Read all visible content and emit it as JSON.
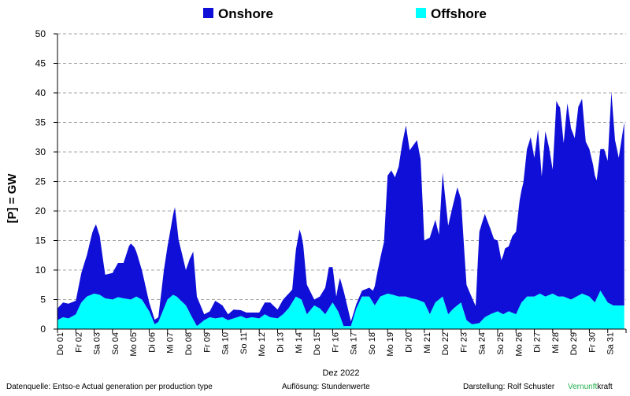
{
  "chart_data": {
    "type": "area",
    "stacked": true,
    "ylabel": "[P] = GW",
    "xlabel": "Dez 2022",
    "ylim": [
      0,
      50
    ],
    "yticks": [
      0,
      5,
      10,
      15,
      20,
      25,
      30,
      35,
      40,
      45,
      50
    ],
    "grid": true,
    "legend_position": "top",
    "x_tick_labels": [
      "Do 01",
      "Fr 02",
      "Sa 03",
      "So 04",
      "Mo 05",
      "Di 06",
      "Mi 07",
      "Do 08",
      "Fr 09",
      "Sa 10",
      "So 11",
      "Mo 12",
      "Di 13",
      "Mi 14",
      "Do 15",
      "Fr 16",
      "Sa 17",
      "So 18",
      "Mo 19",
      "Di 20",
      "Mi 21",
      "Do 22",
      "Fr 23",
      "Sa 24",
      "So 25",
      "Mo 26",
      "Di 27",
      "Mi 28",
      "Do 29",
      "Fr 30",
      "Sa 31"
    ],
    "x_unit": "day of December 2022 (1 = 1 Dec 00:00)",
    "series": [
      {
        "name": "Offshore",
        "color": "#00ffff",
        "x": [
          1.0,
          1.3,
          1.6,
          2.0,
          2.3,
          2.6,
          3.0,
          3.3,
          3.6,
          4.0,
          4.3,
          4.6,
          5.0,
          5.3,
          5.6,
          6.0,
          6.3,
          6.5,
          7.0,
          7.3,
          7.5,
          8.0,
          8.3,
          8.6,
          9.0,
          9.3,
          9.6,
          10.0,
          10.3,
          10.6,
          11.0,
          11.3,
          11.6,
          12.0,
          12.3,
          12.6,
          13.0,
          13.3,
          13.6,
          14.0,
          14.3,
          14.6,
          15.0,
          15.3,
          15.6,
          16.0,
          16.3,
          16.6,
          17.0,
          17.3,
          17.6,
          18.0,
          18.3,
          18.6,
          19.0,
          19.3,
          19.6,
          20.0,
          20.3,
          20.6,
          21.0,
          21.3,
          21.6,
          22.0,
          22.3,
          22.6,
          23.0,
          23.3,
          23.6,
          24.0,
          24.3,
          24.6,
          25.0,
          25.3,
          25.6,
          26.0,
          26.3,
          26.6,
          27.0,
          27.3,
          27.6,
          28.0,
          28.3,
          28.6,
          29.0,
          29.3,
          29.6,
          30.0,
          30.3,
          30.6,
          31.0,
          31.3,
          31.9
        ],
        "values": [
          1.5,
          2.0,
          1.8,
          2.5,
          4.5,
          5.5,
          6.0,
          5.8,
          5.2,
          5.0,
          5.4,
          5.2,
          5.0,
          5.5,
          5.0,
          3.0,
          0.8,
          1.2,
          5.0,
          5.8,
          5.5,
          4.0,
          2.2,
          0.5,
          1.5,
          2.0,
          1.8,
          2.0,
          1.5,
          1.8,
          2.2,
          1.8,
          2.0,
          1.8,
          2.5,
          2.0,
          1.8,
          2.5,
          3.5,
          5.5,
          5.0,
          2.5,
          4.0,
          3.5,
          2.5,
          4.5,
          3.0,
          0.5,
          0.5,
          3.5,
          5.5,
          5.5,
          4.0,
          5.5,
          6.0,
          5.8,
          5.5,
          5.5,
          5.2,
          5.0,
          4.5,
          2.5,
          4.5,
          5.5,
          2.5,
          3.5,
          4.5,
          1.5,
          0.8,
          1.0,
          2.0,
          2.5,
          3.0,
          2.5,
          3.0,
          2.5,
          4.5,
          5.5,
          5.5,
          6.0,
          5.5,
          6.0,
          5.5,
          5.5,
          5.0,
          5.5,
          6.0,
          5.5,
          4.5,
          6.5,
          4.5,
          4.0,
          4.0
        ]
      },
      {
        "name": "Onshore",
        "color": "#0f0fd7",
        "x": [
          1.0,
          1.3,
          1.6,
          2.0,
          2.3,
          2.6,
          2.9,
          3.1,
          3.3,
          3.6,
          4.0,
          4.3,
          4.6,
          4.9,
          5.0,
          5.2,
          5.6,
          6.0,
          6.3,
          6.5,
          6.8,
          7.0,
          7.2,
          7.4,
          7.6,
          8.0,
          8.2,
          8.4,
          8.6,
          9.0,
          9.3,
          9.6,
          10.0,
          10.3,
          10.6,
          11.0,
          11.3,
          11.6,
          12.0,
          12.3,
          12.6,
          13.0,
          13.3,
          13.6,
          13.8,
          14.0,
          14.2,
          14.4,
          14.6,
          15.0,
          15.3,
          15.6,
          15.8,
          16.0,
          16.2,
          16.4,
          16.6,
          17.0,
          17.3,
          17.6,
          18.0,
          18.2,
          18.4,
          18.6,
          18.8,
          19.0,
          19.2,
          19.4,
          19.6,
          19.8,
          20.0,
          20.2,
          20.4,
          20.6,
          20.8,
          21.0,
          21.3,
          21.6,
          21.8,
          22.0,
          22.3,
          22.6,
          22.8,
          23.0,
          23.3,
          23.6,
          23.8,
          24.0,
          24.3,
          24.6,
          24.8,
          25.0,
          25.2,
          25.4,
          25.6,
          25.8,
          26.0,
          26.2,
          26.4,
          26.6,
          26.8,
          27.0,
          27.2,
          27.4,
          27.6,
          27.8,
          28.0,
          28.2,
          28.4,
          28.6,
          28.8,
          29.0,
          29.2,
          29.4,
          29.6,
          29.8,
          30.0,
          30.2,
          30.4,
          30.6,
          30.8,
          31.0,
          31.2,
          31.4,
          31.6,
          31.9
        ],
        "values": [
          2.0,
          2.5,
          2.5,
          2.3,
          5.0,
          7.0,
          10.5,
          11.8,
          10.0,
          4.0,
          4.5,
          5.8,
          6.0,
          9.0,
          9.5,
          8.5,
          5.0,
          1.5,
          0.8,
          0.8,
          6.5,
          9.0,
          12.0,
          15.0,
          10.0,
          6.0,
          9.0,
          11.5,
          5.0,
          1.0,
          1.0,
          3.0,
          2.0,
          1.0,
          1.5,
          1.0,
          1.0,
          0.8,
          1.0,
          2.0,
          2.5,
          1.5,
          2.5,
          2.5,
          2.2,
          8.0,
          11.7,
          10.0,
          5.0,
          1.0,
          2.0,
          4.5,
          7.0,
          6.0,
          2.0,
          6.5,
          6.0,
          0.8,
          0.8,
          1.0,
          1.5,
          2.0,
          4.5,
          6.5,
          9.0,
          20.0,
          21.0,
          20.0,
          22.0,
          26.0,
          29.0,
          25.0,
          26.0,
          27.0,
          24.0,
          10.5,
          13.0,
          14.0,
          11.0,
          21.0,
          15.0,
          18.0,
          20.0,
          17.5,
          6.0,
          4.5,
          3.0,
          15.5,
          17.5,
          14.5,
          12.5,
          12.0,
          9.0,
          11.0,
          11.0,
          13.0,
          14.0,
          18.0,
          20.0,
          25.0,
          27.0,
          23.5,
          28.0,
          20.0,
          28.0,
          25.0,
          21.0,
          33.0,
          32.0,
          26.0,
          33.0,
          29.0,
          27.0,
          32.0,
          33.0,
          26.0,
          25.0,
          23.0,
          20.0,
          24.0,
          25.0,
          24.0,
          36.0,
          28.0,
          25.0,
          31.0
        ]
      }
    ]
  },
  "footer": {
    "source": "Datenquelle: Entso-e  Actual generation per production type",
    "resolution": "Auflösung: Stundenwerte",
    "author": "Darstellung:  Rolf Schuster",
    "brand_part1": "Vernunft",
    "brand_part2": "kraft"
  }
}
